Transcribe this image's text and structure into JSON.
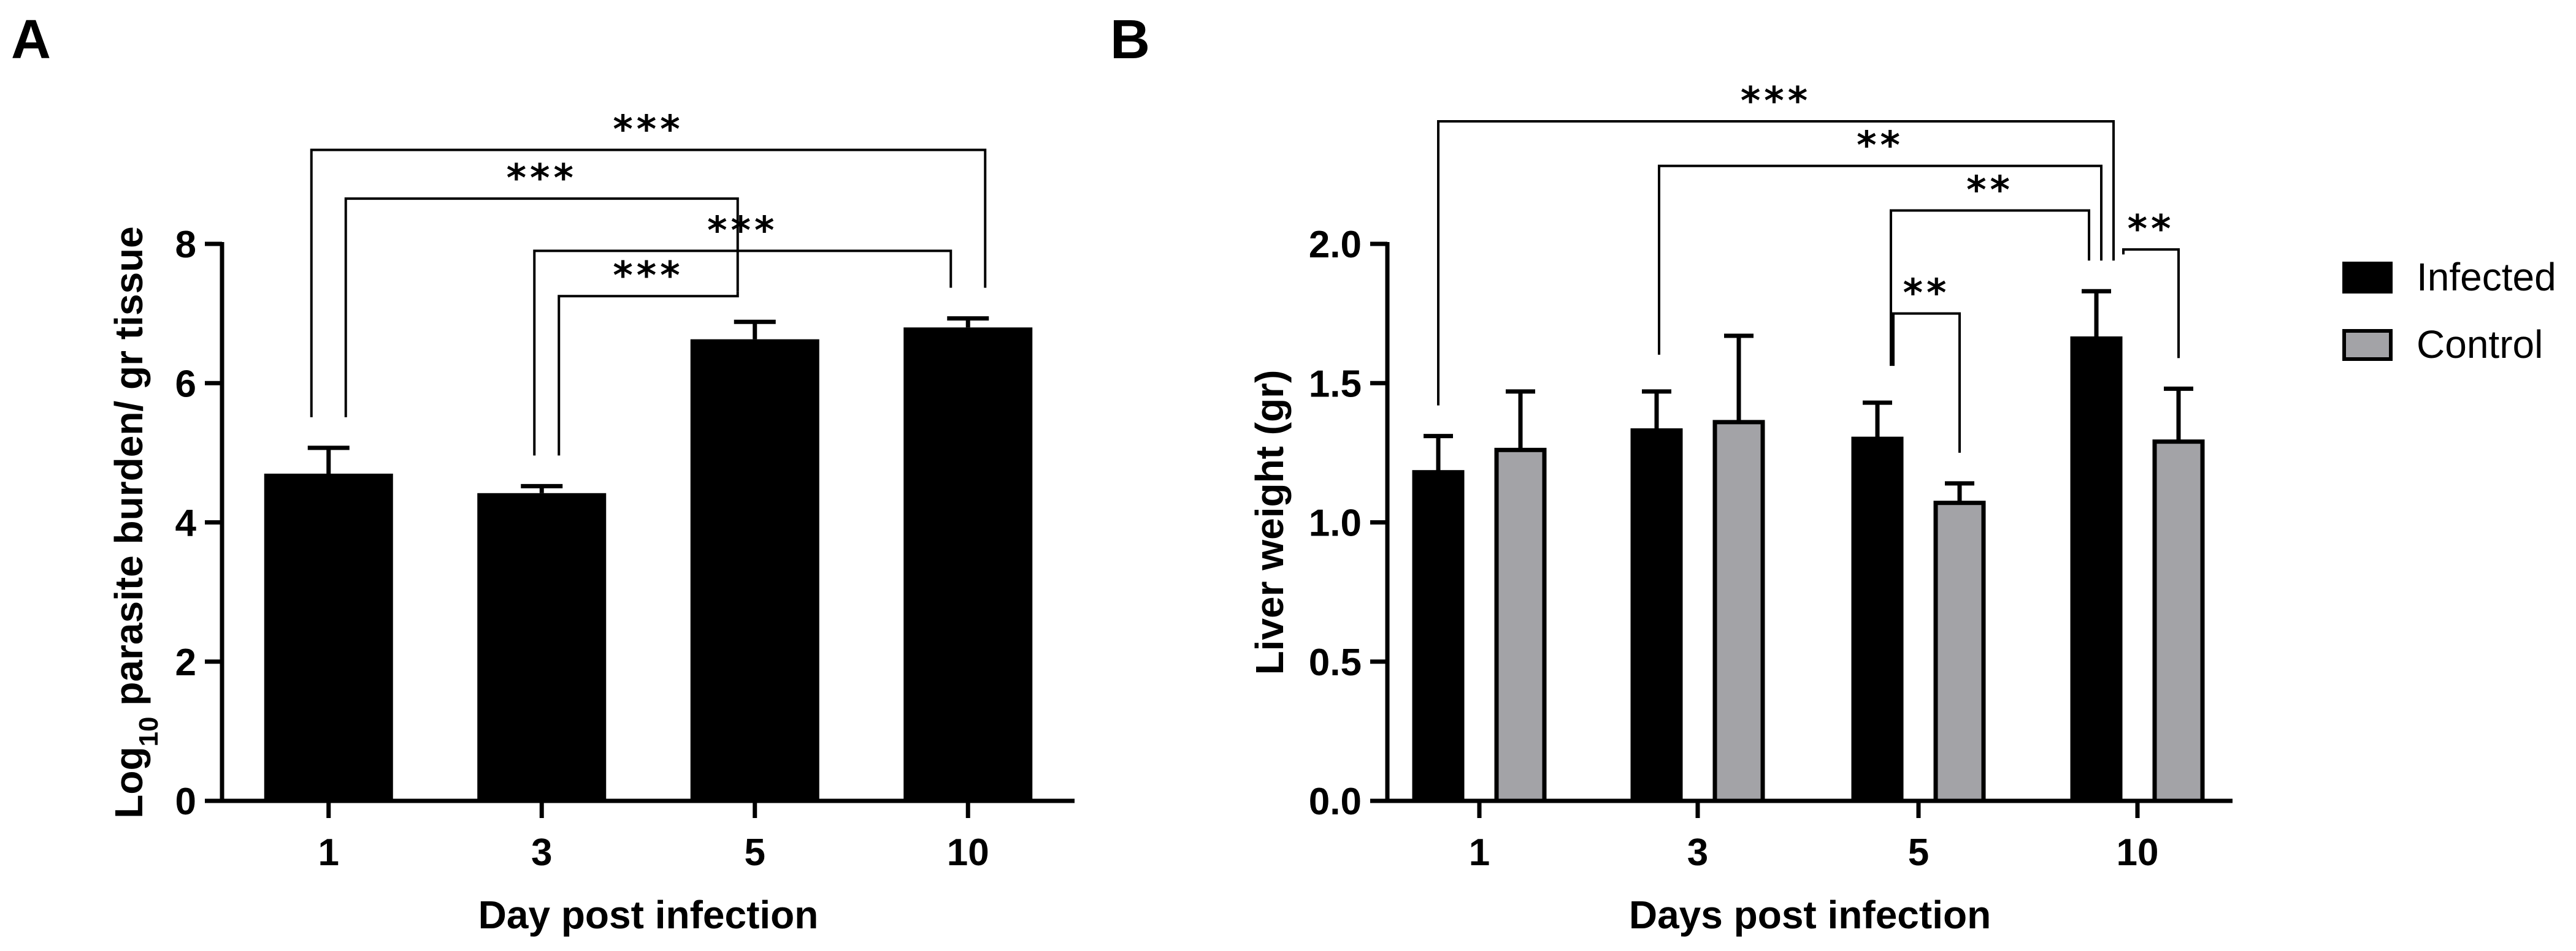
{
  "chart_data": [
    {
      "panel": "A",
      "type": "bar",
      "title": "",
      "xlabel": "Day post infection",
      "ylabel": "Log10 parasite burden/ gr tissue",
      "ylabel_parts": {
        "pre": "Log",
        "sub": "10",
        "post": " parasite burden/ gr tissue"
      },
      "categories": [
        "1",
        "3",
        "5",
        "10"
      ],
      "ylim": [
        0,
        8
      ],
      "yticks": [
        0,
        2,
        4,
        6,
        8
      ],
      "series": [
        {
          "name": "Parasite burden",
          "color": "#000000",
          "values": [
            4.7,
            4.42,
            6.63,
            6.8
          ],
          "errors": [
            0.37,
            0.1,
            0.25,
            0.13
          ]
        }
      ],
      "annotations": [
        {
          "from": 0,
          "to": 3,
          "label": "***",
          "y_top": 9.35
        },
        {
          "from": 0,
          "to": 2,
          "label": "***",
          "y_top": 8.65
        },
        {
          "from": 1,
          "to": 3,
          "label": "***",
          "y_top": 7.9
        },
        {
          "from": 1,
          "to": 2,
          "label": "***",
          "y_top": 7.25
        }
      ]
    },
    {
      "panel": "B",
      "type": "bar",
      "title": "",
      "xlabel": "Days post infection",
      "ylabel": "Liver weight (gr)",
      "categories": [
        "1",
        "3",
        "5",
        "10"
      ],
      "ylim": [
        0,
        2.0
      ],
      "yticks": [
        "0.0",
        "0.5",
        "1.0",
        "1.5",
        "2.0"
      ],
      "series": [
        {
          "name": "Infected",
          "color": "#000000",
          "values": [
            1.18,
            1.33,
            1.3,
            1.66
          ],
          "errors": [
            0.13,
            0.14,
            0.13,
            0.17
          ]
        },
        {
          "name": "Control",
          "color": "#a3a3a7",
          "values": [
            1.26,
            1.36,
            1.07,
            1.29
          ],
          "errors": [
            0.21,
            0.31,
            0.07,
            0.19
          ]
        }
      ],
      "annotations": [
        {
          "from": [
            0,
            0
          ],
          "to": [
            3,
            0
          ],
          "label": "***",
          "y_top": 2.44
        },
        {
          "from": [
            1,
            0
          ],
          "to": [
            3,
            0
          ],
          "label": "**",
          "y_top": 2.28
        },
        {
          "from": [
            2,
            0
          ],
          "to": [
            3,
            0
          ],
          "label": "**",
          "y_top": 2.12
        },
        {
          "from": [
            3,
            0
          ],
          "to": [
            3,
            1
          ],
          "label": "**",
          "y_top": 1.98
        },
        {
          "from": [
            2,
            0
          ],
          "to": [
            2,
            1
          ],
          "label": "**",
          "y_top": 1.75
        }
      ],
      "legend": {
        "position": "right",
        "entries": [
          "Infected",
          "Control"
        ]
      }
    }
  ]
}
